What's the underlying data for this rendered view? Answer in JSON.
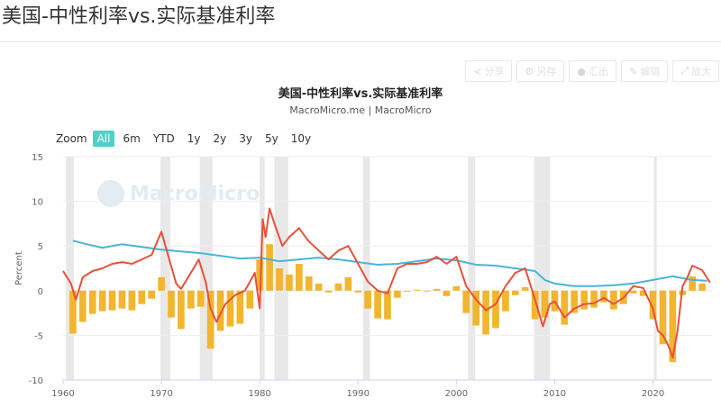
{
  "page": {
    "title": "美国-中性利率vs.实际基准利率"
  },
  "toolbar": {
    "share": "分享",
    "save": "另存",
    "export": "汇出",
    "edit": "编辑",
    "fullscreen": "放大"
  },
  "range_selector": {
    "zoom_label": "Zoom",
    "buttons": [
      "All",
      "6m",
      "YTD",
      "1y",
      "2y",
      "3y",
      "5y",
      "10y"
    ],
    "active": "All"
  },
  "watermark": "MacroMicro",
  "colors": {
    "neutral": "#4ab4d8",
    "real": "#e8503a",
    "gap": "#f2b52e",
    "recession": "#e8e8e8"
  },
  "chart_data": {
    "type": "line",
    "title": "美国-中性利率vs.实际基准利率",
    "subtitle": "MacroMicro.me | MacroMicro",
    "ylabel": "Percent",
    "ylim": [
      -10,
      15
    ],
    "yticks": [
      15,
      10,
      5,
      0,
      -5,
      -10
    ],
    "xlim": [
      1960,
      2026
    ],
    "xticks": [
      1960,
      1970,
      1980,
      1990,
      2000,
      2010,
      2020
    ],
    "recessions": [
      [
        1960.3,
        1961.1
      ],
      [
        1969.9,
        1970.9
      ],
      [
        1973.9,
        1975.2
      ],
      [
        1980.0,
        1980.5
      ],
      [
        1981.5,
        1982.9
      ],
      [
        1990.5,
        1991.2
      ],
      [
        2001.2,
        2001.9
      ],
      [
        2007.9,
        2009.5
      ],
      [
        2020.1,
        2020.3
      ]
    ],
    "series": [
      {
        "name": "",
        "kind": "line",
        "x": [
          1961,
          1962,
          1964,
          1966,
          1968,
          1970,
          1972,
          1974,
          1976,
          1978,
          1980,
          1982,
          1984,
          1986,
          1988,
          1990,
          1992,
          1994,
          1996,
          1998,
          2000,
          2002,
          2004,
          2006,
          2008,
          2009,
          2010,
          2012,
          2014,
          2016,
          2018,
          2020,
          2021,
          2022,
          2023,
          2024,
          2025.5
        ],
        "y": [
          5.6,
          5.3,
          4.8,
          5.2,
          4.9,
          4.6,
          4.4,
          4.2,
          3.9,
          3.6,
          3.7,
          3.3,
          3.5,
          3.7,
          3.5,
          3.2,
          2.9,
          3.0,
          3.3,
          3.6,
          3.4,
          2.9,
          2.8,
          2.5,
          2.2,
          1.2,
          0.8,
          0.5,
          0.5,
          0.6,
          0.8,
          1.2,
          1.4,
          1.6,
          1.4,
          1.2,
          1.1
        ]
      },
      {
        "name": "",
        "kind": "line",
        "x": [
          1960,
          1960.8,
          1961.3,
          1962,
          1963,
          1964,
          1965,
          1966,
          1967,
          1968,
          1969,
          1970,
          1970.8,
          1971.5,
          1972,
          1973,
          1973.8,
          1974.5,
          1975,
          1975.6,
          1976.5,
          1977.5,
          1978.5,
          1979.5,
          1980,
          1980.3,
          1980.6,
          1981,
          1981.5,
          1982.3,
          1983,
          1984,
          1985,
          1986,
          1987,
          1988,
          1989,
          1990,
          1991,
          1992,
          1993,
          1994,
          1995,
          1996,
          1997,
          1998,
          1999,
          2000,
          2001,
          2002,
          2003,
          2004,
          2005,
          2006,
          2007,
          2008,
          2008.8,
          2009.5,
          2010,
          2011,
          2012,
          2013,
          2014,
          2015,
          2016,
          2017,
          2018,
          2019,
          2020,
          2020.5,
          2021,
          2021.5,
          2022,
          2022.5,
          2023,
          2023.5,
          2024,
          2025,
          2025.8
        ],
        "y": [
          2.2,
          0.8,
          -1.0,
          1.5,
          2.2,
          2.5,
          3.0,
          3.2,
          3.0,
          3.5,
          4.0,
          6.6,
          3.5,
          0.8,
          0.2,
          2.0,
          3.5,
          1.0,
          -2.0,
          -3.5,
          -1.5,
          -0.5,
          0.0,
          2.0,
          -2.0,
          8.0,
          6.0,
          9.2,
          7.5,
          5.0,
          6.0,
          7.0,
          5.5,
          4.5,
          3.5,
          4.5,
          5.0,
          3.0,
          1.0,
          0.0,
          -0.3,
          2.5,
          3.0,
          3.0,
          3.2,
          3.8,
          3.0,
          3.8,
          0.5,
          -1.0,
          -2.2,
          -1.5,
          0.5,
          2.0,
          2.5,
          -1.0,
          -4.0,
          -1.5,
          -1.2,
          -3.0,
          -2.0,
          -1.5,
          -1.4,
          -0.8,
          -1.5,
          -0.8,
          0.5,
          0.3,
          -2.0,
          -4.5,
          -5.0,
          -6.0,
          -7.5,
          -4.5,
          0.5,
          1.5,
          2.8,
          2.3,
          0.9
        ]
      },
      {
        "name": "",
        "kind": "bar",
        "x": [
          1961,
          1962,
          1963,
          1964,
          1965,
          1966,
          1967,
          1968,
          1969,
          1970,
          1971,
          1972,
          1973,
          1974,
          1975,
          1976,
          1977,
          1978,
          1979,
          1980,
          1981,
          1982,
          1983,
          1984,
          1985,
          1986,
          1987,
          1988,
          1989,
          1990,
          1991,
          1992,
          1993,
          1994,
          1995,
          1996,
          1997,
          1998,
          1999,
          2000,
          2001,
          2002,
          2003,
          2004,
          2005,
          2006,
          2007,
          2008,
          2009,
          2010,
          2011,
          2012,
          2013,
          2014,
          2015,
          2016,
          2017,
          2018,
          2019,
          2020,
          2021,
          2022,
          2023,
          2024,
          2025
        ],
        "y": [
          -4.8,
          -3.5,
          -2.6,
          -2.3,
          -2.2,
          -2.0,
          -2.2,
          -1.5,
          -0.9,
          1.5,
          -3.0,
          -4.3,
          -2.0,
          -1.8,
          -6.5,
          -4.5,
          -4.0,
          -3.7,
          -2.0,
          3.5,
          5.2,
          2.5,
          1.8,
          3.0,
          1.6,
          0.8,
          -0.2,
          0.8,
          1.5,
          -0.2,
          -2.0,
          -3.1,
          -3.2,
          -0.8,
          0.0,
          0.1,
          0.0,
          0.2,
          -0.6,
          0.5,
          -2.5,
          -3.9,
          -4.9,
          -4.2,
          -2.3,
          -0.5,
          0.4,
          -3.2,
          -3.0,
          -2.3,
          -3.8,
          -2.5,
          -2.1,
          -1.9,
          -1.3,
          -2.1,
          -1.5,
          -0.3,
          -0.6,
          -3.2,
          -6.0,
          -8.0,
          -0.5,
          1.6,
          0.8
        ]
      }
    ]
  }
}
